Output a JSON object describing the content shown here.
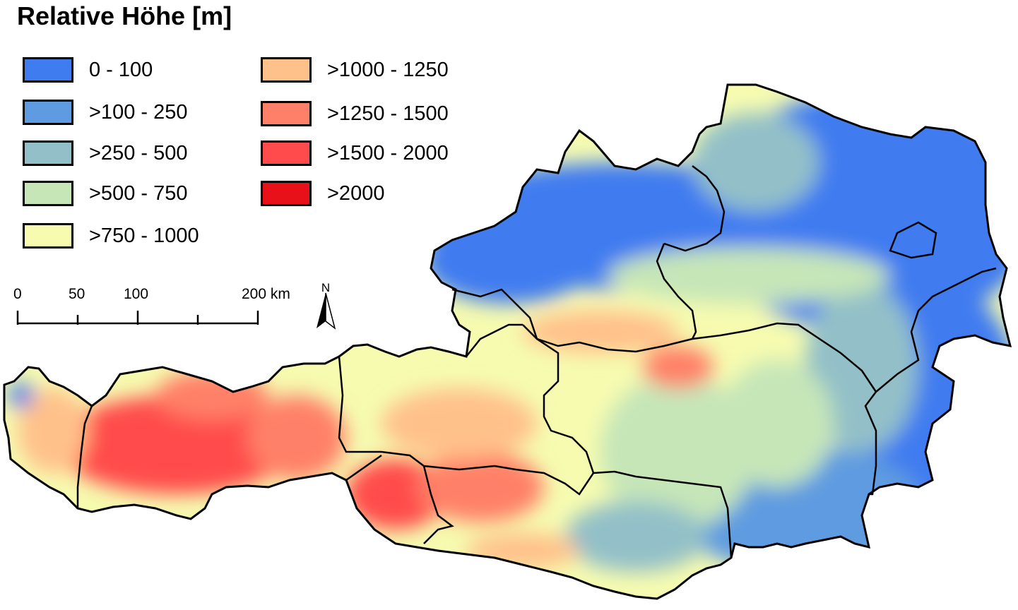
{
  "title": "Relative Höhe [m]",
  "legend": [
    {
      "label": "0 - 100",
      "color": "#3f7cf0"
    },
    {
      "label": ">100 - 250",
      "color": "#5e9be0"
    },
    {
      "label": ">250 - 500",
      "color": "#93c0c8"
    },
    {
      "label": ">500 - 750",
      "color": "#c6e6b8"
    },
    {
      "label": ">750 - 1000",
      "color": "#f6fbb0"
    },
    {
      "label": ">1000 - 1250",
      "color": "#ffc18a"
    },
    {
      "label": ">1250 - 1500",
      "color": "#ff8068"
    },
    {
      "label": ">1500 - 2000",
      "color": "#ff4b4b"
    },
    {
      "label": ">2000",
      "color": "#e8111a"
    }
  ],
  "scalebar": {
    "labels": [
      "0",
      "50",
      "100",
      "200 km"
    ]
  },
  "north_arrow": {
    "label": "N",
    "icon": "north-arrow-icon"
  }
}
